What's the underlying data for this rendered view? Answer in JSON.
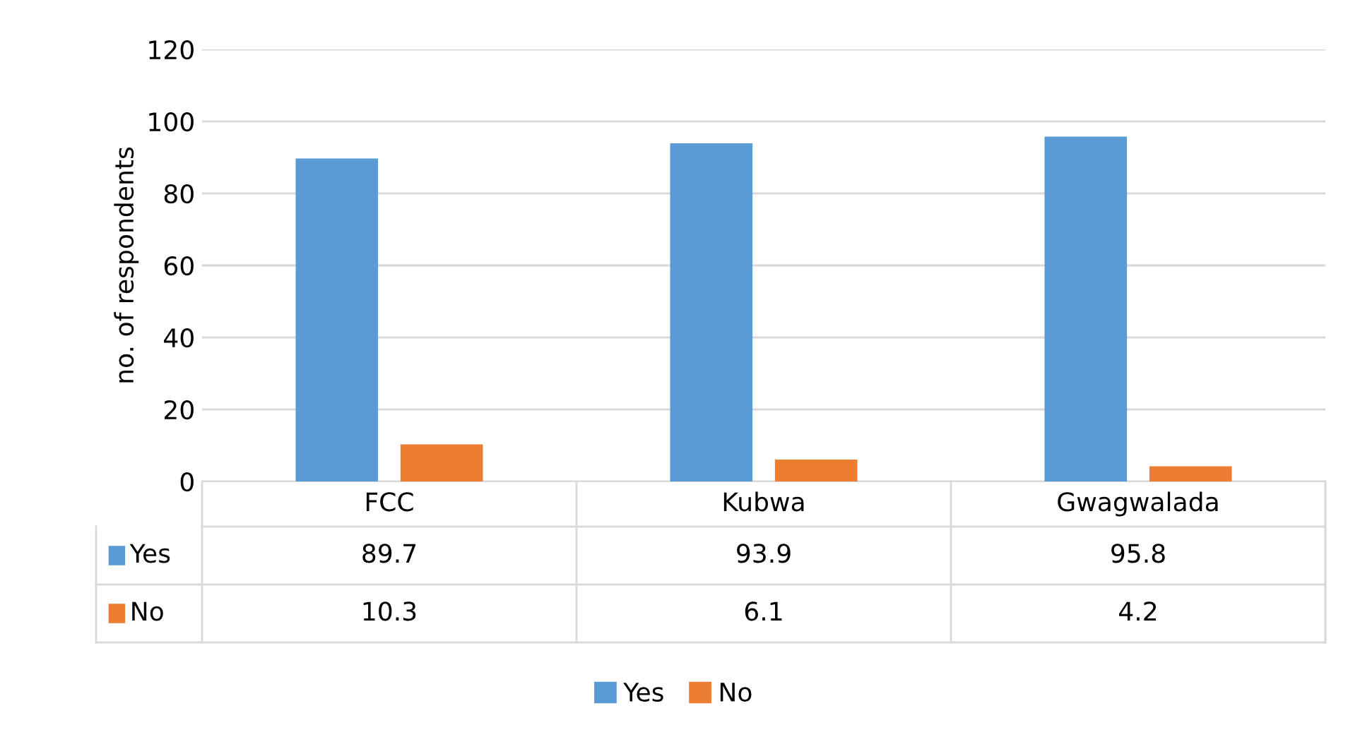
{
  "chart_data": {
    "type": "bar",
    "ylabel": "no. of respondents",
    "categories": [
      "FCC",
      "Kubwa",
      "Gwagwalada"
    ],
    "series": [
      {
        "name": "Yes",
        "color": "#5b9bd5",
        "values": [
          89.7,
          93.9,
          95.8
        ]
      },
      {
        "name": "No",
        "color": "#ed7d31",
        "values": [
          10.3,
          6.1,
          4.2
        ]
      }
    ],
    "ylim": [
      0,
      120
    ],
    "yticks": [
      0,
      20,
      40,
      60,
      80,
      100,
      120
    ],
    "grid": "y",
    "legend": "bottom",
    "data_labels": true
  }
}
